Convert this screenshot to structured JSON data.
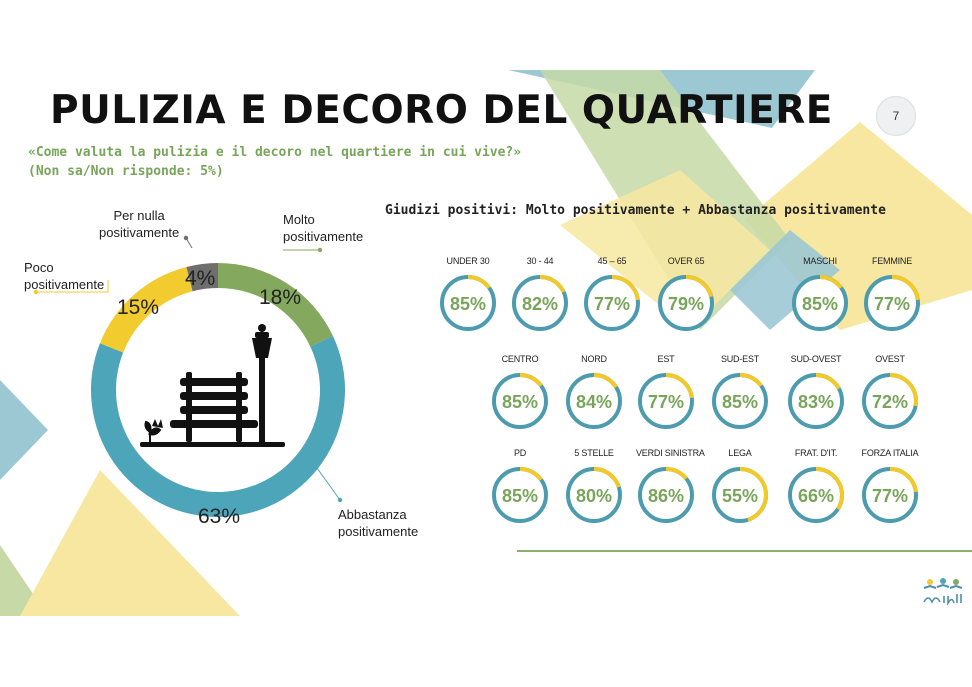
{
  "page": {
    "title": "PULIZIA E DECORO DEL QUARTIERE",
    "number": "7"
  },
  "subtitle": {
    "question": "«Come valuta la pulizia e il decoro nel quartiere in cui vive?»",
    "note": "(Non sa/Non risponde: 5%)"
  },
  "section_title": "Giudizi positivi: Molto positivamente + Abbastanza positivamente",
  "colors": {
    "molto": "#84a95e",
    "abbastanza": "#4da5b9",
    "poco": "#f2cb2e",
    "per_nulla": "#6e6e6e",
    "ring_base": "#4c9bae",
    "ring_accent": "#f3c928",
    "value_text": "#78a55a",
    "deco_teal": "#9cc8d4",
    "deco_yellow": "#f7e7a0",
    "deco_green": "#c6d9a6"
  },
  "chart_data": [
    {
      "type": "pie",
      "title": "",
      "slices": [
        {
          "label": "Molto positivamente",
          "value": 18,
          "value_label": "18%"
        },
        {
          "label": "Abbastanza positivamente",
          "value": 63,
          "value_label": "63%"
        },
        {
          "label": "Poco positivamente",
          "value": 15,
          "value_label": "15%"
        },
        {
          "label": "Per nulla positivamente",
          "value": 4,
          "value_label": "4%"
        }
      ],
      "labels": {
        "molto": [
          "Molto",
          "positivamente"
        ],
        "abbastanza": [
          "Abbastanza",
          "positivamente"
        ],
        "poco": [
          "Poco",
          "positivamente"
        ],
        "per_nulla": [
          "Per nulla",
          "positivamente"
        ]
      },
      "center_icon": "park-bench-icon"
    },
    {
      "type": "donut-grid",
      "rows": [
        [
          {
            "label": "UNDER 30",
            "value": 85,
            "value_label": "85%"
          },
          {
            "label": "30 - 44",
            "value": 82,
            "value_label": "82%"
          },
          {
            "label": "45 – 65",
            "value": 77,
            "value_label": "77%"
          },
          {
            "label": "OVER 65",
            "value": 79,
            "value_label": "79%"
          },
          {
            "label": "MASCHI",
            "value": 85,
            "value_label": "85%"
          },
          {
            "label": "FEMMINE",
            "value": 77,
            "value_label": "77%"
          }
        ],
        [
          {
            "label": "CENTRO",
            "value": 85,
            "value_label": "85%"
          },
          {
            "label": "NORD",
            "value": 84,
            "value_label": "84%"
          },
          {
            "label": "EST",
            "value": 77,
            "value_label": "77%"
          },
          {
            "label": "SUD-EST",
            "value": 85,
            "value_label": "85%"
          },
          {
            "label": "SUD-OVEST",
            "value": 83,
            "value_label": "83%"
          },
          {
            "label": "OVEST",
            "value": 72,
            "value_label": "72%"
          }
        ],
        [
          {
            "label": "PD",
            "value": 85,
            "value_label": "85%"
          },
          {
            "label": "5 STELLE",
            "value": 80,
            "value_label": "80%"
          },
          {
            "label": "VERDI SINISTRA",
            "value": 86,
            "value_label": "86%"
          },
          {
            "label": "LEGA",
            "value": 55,
            "value_label": "55%"
          },
          {
            "label": "FRAT. D'IT.",
            "value": 66,
            "value_label": "66%"
          },
          {
            "label": "FORZA ITALIA",
            "value": 77,
            "value_label": "77%"
          }
        ]
      ]
    }
  ]
}
